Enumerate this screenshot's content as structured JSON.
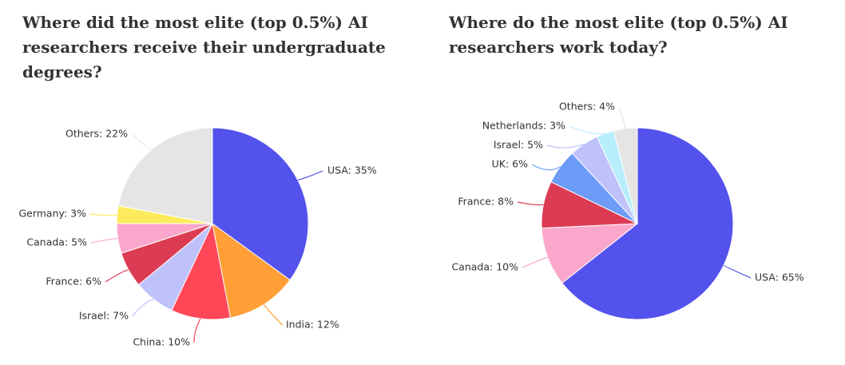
{
  "chart_data": [
    {
      "type": "pie",
      "title": "Where did the most elite (top 0.5%) AI researchers receive their undergraduate degrees?",
      "categories": [
        "USA",
        "India",
        "China",
        "Israel",
        "France",
        "Canada",
        "Germany",
        "Others"
      ],
      "values": [
        35,
        12,
        10,
        7,
        6,
        5,
        3,
        22
      ],
      "labels": [
        "USA: 35%",
        "India: 12%",
        "China: 10%",
        "Israel: 7%",
        "France: 6%",
        "Canada: 5%",
        "Germany: 3%",
        "Others: 22%"
      ],
      "colors": [
        "#5352ED",
        "#FF9F36",
        "#FF4757",
        "#BFC2FA",
        "#DC3C53",
        "#FBA7CC",
        "#FCEC5D",
        "#E5E5E5"
      ],
      "unit": "%"
    },
    {
      "type": "pie",
      "title": "Where do the most elite (top 0.5%) AI researchers work today?",
      "categories": [
        "USA",
        "Canada",
        "France",
        "UK",
        "Israel",
        "Netherlands",
        "Others"
      ],
      "values": [
        65,
        10,
        8,
        6,
        5,
        3,
        4
      ],
      "labels": [
        "USA: 65%",
        "Canada: 10%",
        "France: 8%",
        "UK: 6%",
        "Israel: 5%",
        "Netherlands: 3%",
        "Others: 4%"
      ],
      "colors": [
        "#5352ED",
        "#FBA7CC",
        "#DC3C53",
        "#6D9CF8",
        "#BFC2FA",
        "#B8EEFC",
        "#E5E5E5"
      ],
      "unit": "%"
    }
  ]
}
